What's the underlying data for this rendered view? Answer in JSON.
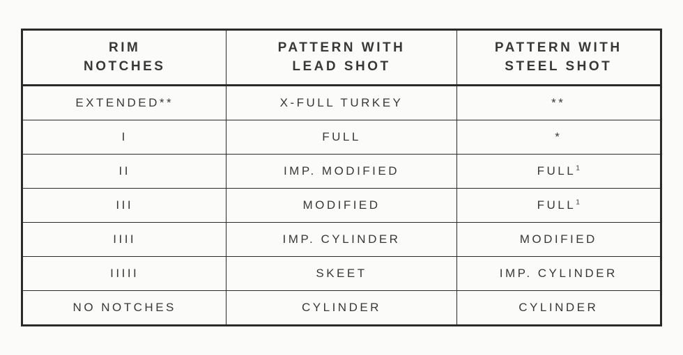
{
  "table": {
    "type": "table",
    "background_color": "#fbfbfa",
    "border_color": "#2a2a2a",
    "text_color": "#383838",
    "outer_border_width": 3,
    "inner_border_width": 1,
    "header_fontsize": 19,
    "cell_fontsize": 17,
    "letter_spacing": 3.5,
    "column_widths": [
      "32%",
      "36%",
      "32%"
    ],
    "columns": [
      {
        "line1": "RIM",
        "line2": "NOTCHES"
      },
      {
        "line1": "PATTERN WITH",
        "line2": "LEAD SHOT"
      },
      {
        "line1": "PATTERN WITH",
        "line2": "STEEL SHOT"
      }
    ],
    "rows": [
      {
        "rim": "EXTENDED**",
        "lead": "X-FULL TURKEY",
        "steel": "**",
        "steel_sup": ""
      },
      {
        "rim": "I",
        "lead": "FULL",
        "steel": "*",
        "steel_sup": ""
      },
      {
        "rim": "II",
        "lead": "IMP. MODIFIED",
        "steel": "FULL",
        "steel_sup": "1"
      },
      {
        "rim": "III",
        "lead": "MODIFIED",
        "steel": "FULL",
        "steel_sup": "1"
      },
      {
        "rim": "IIII",
        "lead": "IMP. CYLINDER",
        "steel": "MODIFIED",
        "steel_sup": ""
      },
      {
        "rim": "IIIII",
        "lead": "SKEET",
        "steel": "IMP. CYLINDER",
        "steel_sup": ""
      },
      {
        "rim": "NO NOTCHES",
        "lead": "CYLINDER",
        "steel": "CYLINDER",
        "steel_sup": ""
      }
    ]
  }
}
